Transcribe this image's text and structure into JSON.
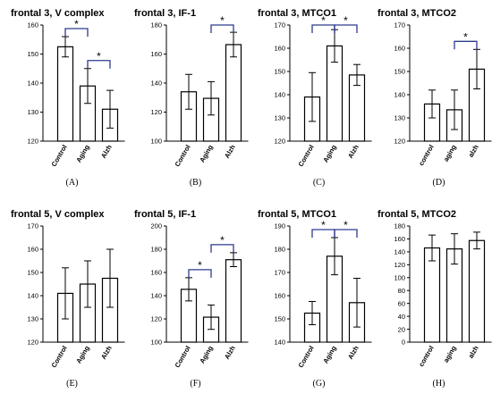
{
  "style": {
    "bar_fill": "#ffffff",
    "bar_stroke": "#000000",
    "bracket_color": "#2f3a8f"
  },
  "chart_data": [
    {
      "type": "bar",
      "label": "(A)",
      "title": "frontal 3, V complex",
      "categories": [
        "Control",
        "Aging",
        "Alzh"
      ],
      "values": [
        152.5,
        139,
        131
      ],
      "errors": [
        3.5,
        6,
        6.5
      ],
      "ylim": [
        120,
        160
      ],
      "yticks": [
        120,
        130,
        140,
        150,
        160
      ],
      "brackets": [
        {
          "from": 0,
          "to": 1,
          "label": "*"
        },
        {
          "from": 1,
          "to": 2,
          "label": "*"
        }
      ]
    },
    {
      "type": "bar",
      "label": "(B)",
      "title": "frontal 3, IF-1",
      "categories": [
        "Control",
        "Aging",
        "Alzh"
      ],
      "values": [
        134,
        129.5,
        166.5
      ],
      "errors": [
        12,
        11.5,
        8.5
      ],
      "ylim": [
        100,
        180
      ],
      "yticks": [
        100,
        120,
        140,
        160,
        180
      ],
      "brackets": [
        {
          "from": 1,
          "to": 2,
          "label": "*"
        }
      ]
    },
    {
      "type": "bar",
      "label": "(C)",
      "title": "frontal 3, MTCO1",
      "categories": [
        "Control",
        "Aging",
        "Alzh"
      ],
      "values": [
        139,
        161,
        148.5
      ],
      "errors": [
        10.5,
        7,
        4.5
      ],
      "ylim": [
        120,
        170
      ],
      "yticks": [
        120,
        130,
        140,
        150,
        160,
        170
      ],
      "brackets": [
        {
          "from": 0,
          "to": 1,
          "label": "*"
        },
        {
          "from": 1,
          "to": 2,
          "label": "*"
        }
      ]
    },
    {
      "type": "bar",
      "label": "(D)",
      "title": "frontal 3, MTCO2",
      "categories": [
        "control",
        "aging",
        "alzh"
      ],
      "values": [
        136,
        133.5,
        151
      ],
      "errors": [
        6,
        8.5,
        8.5
      ],
      "ylim": [
        120,
        170
      ],
      "yticks": [
        120,
        130,
        140,
        150,
        160,
        170
      ],
      "brackets": [
        {
          "from": 1,
          "to": 2,
          "label": "*"
        }
      ]
    },
    {
      "type": "bar",
      "label": "(E)",
      "title": "frontal 5, V complex",
      "categories": [
        "Control",
        "Aging",
        "Alzh"
      ],
      "values": [
        141,
        145,
        147.5
      ],
      "errors": [
        11,
        10,
        12.5
      ],
      "ylim": [
        120,
        170
      ],
      "yticks": [
        120,
        130,
        140,
        150,
        160,
        170
      ],
      "brackets": []
    },
    {
      "type": "bar",
      "label": "(F)",
      "title": "frontal 5, IF-1",
      "categories": [
        "Control",
        "Aging",
        "Alzh"
      ],
      "values": [
        145.5,
        121.5,
        171
      ],
      "errors": [
        10,
        10.5,
        6
      ],
      "ylim": [
        100,
        200
      ],
      "yticks": [
        100,
        120,
        140,
        160,
        180,
        200
      ],
      "brackets": [
        {
          "from": 0,
          "to": 1,
          "label": "*"
        },
        {
          "from": 1,
          "to": 2,
          "label": "*"
        }
      ]
    },
    {
      "type": "bar",
      "label": "(G)",
      "title": "frontal 5, MTCO1",
      "categories": [
        "Control",
        "Aging",
        "Alzh"
      ],
      "values": [
        152.5,
        177,
        157
      ],
      "errors": [
        5,
        8,
        10.5
      ],
      "ylim": [
        140,
        190
      ],
      "yticks": [
        140,
        150,
        160,
        170,
        180,
        190
      ],
      "brackets": [
        {
          "from": 0,
          "to": 1,
          "label": "*"
        },
        {
          "from": 1,
          "to": 2,
          "label": "*"
        }
      ]
    },
    {
      "type": "bar",
      "label": "(H)",
      "title": "frontal 5, MTCO2",
      "categories": [
        "control",
        "aging",
        "alzh"
      ],
      "values": [
        146,
        144.5,
        157.5
      ],
      "errors": [
        20,
        23.5,
        13
      ],
      "ylim": [
        0,
        180
      ],
      "yticks": [
        0,
        20,
        40,
        60,
        80,
        100,
        120,
        140,
        160,
        180
      ],
      "brackets": []
    }
  ]
}
